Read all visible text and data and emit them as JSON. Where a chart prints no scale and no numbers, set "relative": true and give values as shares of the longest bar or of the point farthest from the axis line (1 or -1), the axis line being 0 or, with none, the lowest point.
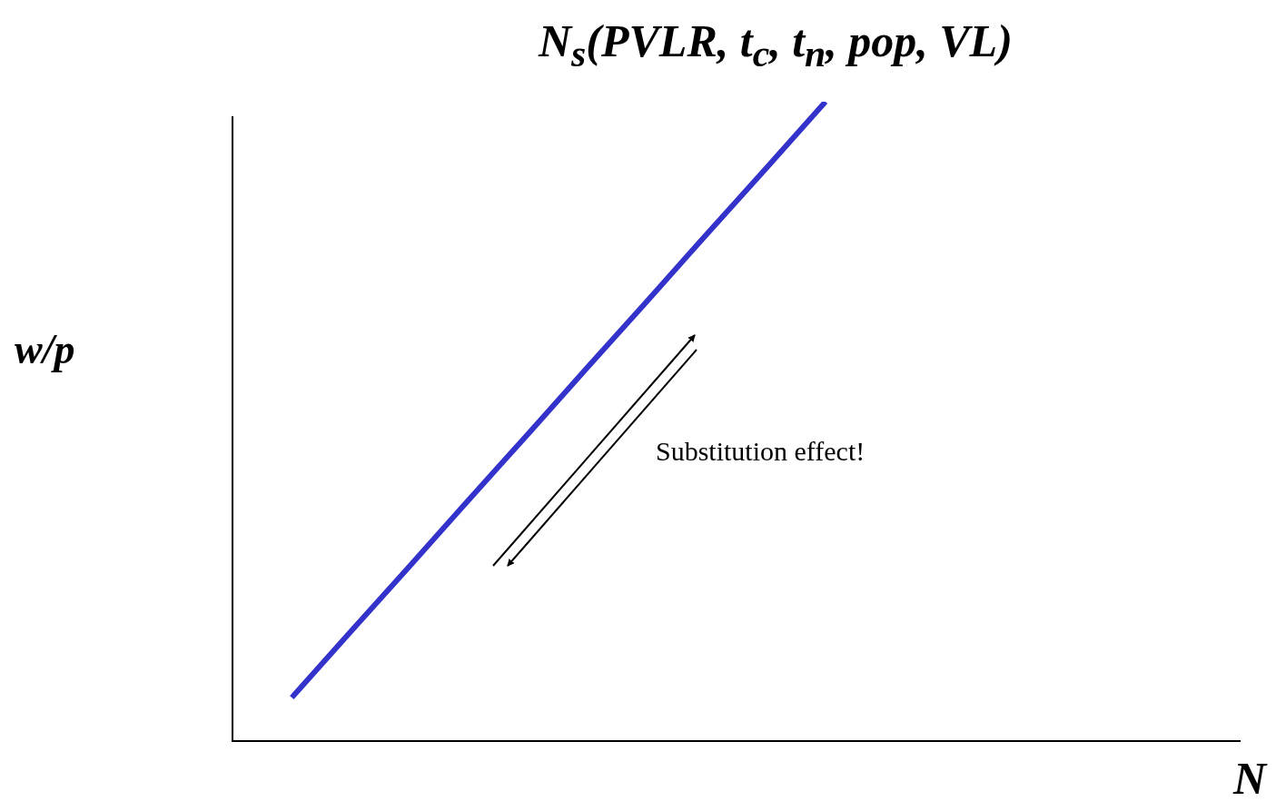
{
  "chart_data": {
    "type": "line",
    "title": "N$_{s}$(PVLR, t$_{c}$, t$_{n}$, pop, VL)",
    "xlabel": "N",
    "ylabel": "w/p",
    "relative": true,
    "legend": false,
    "categories": [
      null,
      null,
      null,
      null,
      null,
      null,
      null,
      null,
      null,
      null,
      null,
      null,
      null,
      null,
      null,
      null,
      null,
      null
    ],
    "series": [
      {
        "color": "#3333cc",
        "values": [
          null,
          0.068,
          0.172,
          0.275,
          0.379,
          0.482,
          0.586,
          0.689,
          0.793,
          0.896,
          1,
          null,
          null,
          null,
          null,
          null,
          null,
          null
        ]
      }
    ],
    "annotations": [
      "Substitution effect!"
    ]
  }
}
